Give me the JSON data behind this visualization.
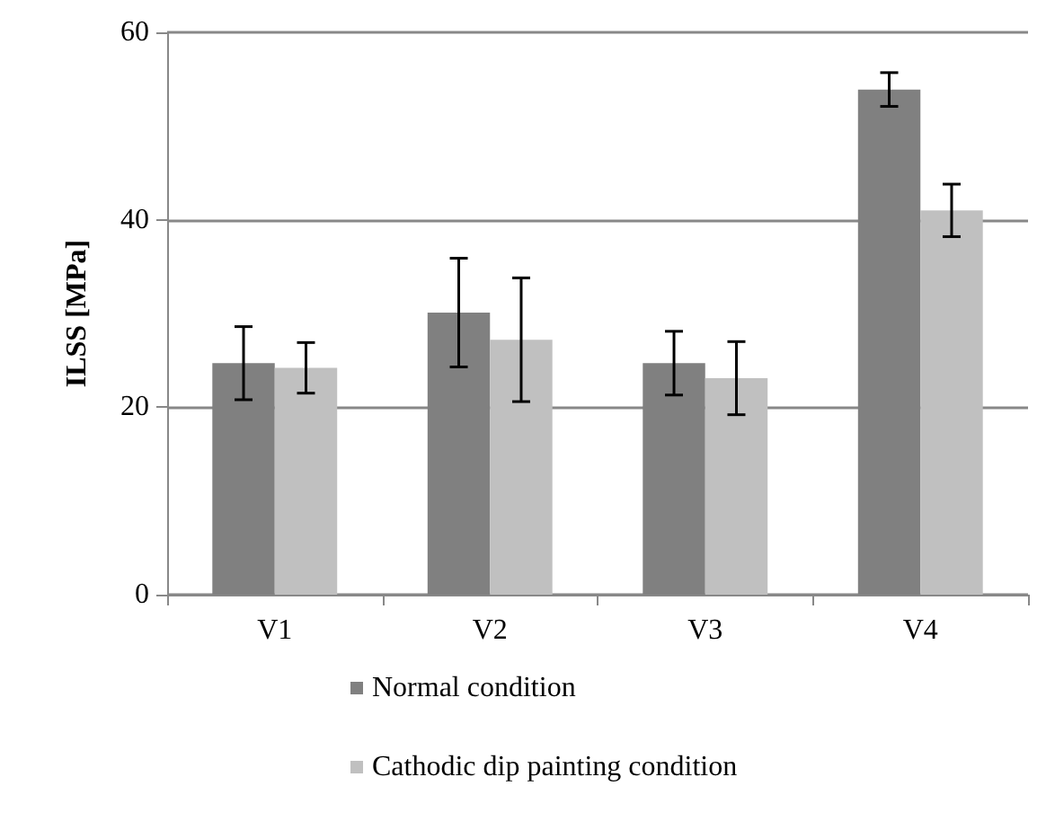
{
  "chart_data": {
    "type": "bar",
    "ylabel": "ILSS [MPa]",
    "categories": [
      "V1",
      "V2",
      "V3",
      "V4"
    ],
    "series": [
      {
        "name": "Normal condition",
        "color": "#808080",
        "values": [
          24.7,
          30.1,
          24.7,
          53.9
        ],
        "errors": [
          3.9,
          5.8,
          3.4,
          1.8
        ]
      },
      {
        "name": "Cathodic dip painting condition",
        "color": "#c0c0c0",
        "values": [
          24.2,
          27.2,
          23.1,
          41.0
        ],
        "errors": [
          2.7,
          6.6,
          3.9,
          2.8
        ]
      }
    ],
    "ylim": [
      0,
      60
    ],
    "yticks": [
      0,
      20,
      40,
      60
    ],
    "grid": "y",
    "legend": "bottom"
  }
}
